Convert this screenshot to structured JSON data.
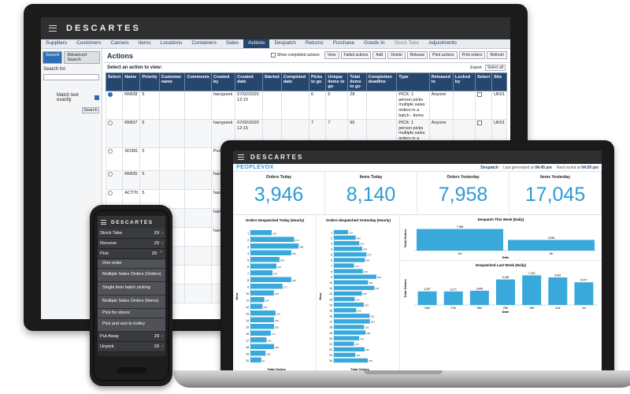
{
  "monitor": {
    "logo": "DESCARTES",
    "nav": [
      "Suppliers",
      "Customers",
      "Carriers",
      "Items",
      "Locations",
      "Containers",
      "Sales",
      "Actions",
      "Despatch",
      "Returns",
      "Purchase",
      "Goods In",
      "Stock Take",
      "Adjustments"
    ],
    "nav_active": "Actions",
    "sidebar": {
      "tab_search": "Search",
      "tab_advanced": "Advanced Search",
      "search_for": "Search for:",
      "match_text": "Match text exactly",
      "search_btn": "Search"
    },
    "title": "Actions",
    "show_completed": "Show completed actions",
    "toolbar": [
      "View",
      "Failed actions",
      "Add",
      "Delete",
      "Release",
      "Print actions",
      "Print orders",
      "Refresh"
    ],
    "select_label": "Select an action to view:",
    "export": "Export",
    "select_all": "Select all",
    "columns": [
      "Select",
      "Name",
      "Priority",
      "Customer name",
      "Comments",
      "Created by",
      "Created date",
      "Started",
      "Completed date",
      "Picks to go",
      "Unique items to go",
      "Total items to go",
      "Completion deadline",
      "Type",
      "Released to",
      "Locked by",
      "Select",
      "Site"
    ],
    "rows": [
      {
        "selected": true,
        "name": "RMI38",
        "priority": "5",
        "created_by": "harrypeek",
        "created_date": "07/02/2020 12:15",
        "picks": "6",
        "unique": "6",
        "total": "28",
        "type": "PICK: 1 person picks multiple sales orders in a batch - Items",
        "released": "Anyone",
        "locked": "",
        "site": "UK01"
      },
      {
        "selected": false,
        "name": "RMI37",
        "priority": "5",
        "created_by": "harrypeek",
        "created_date": "07/02/2020 12:15",
        "picks": "7",
        "unique": "7",
        "total": "95",
        "type": "PICK: 1 person picks multiple sales orders in a batch - Items",
        "released": "Anyone",
        "locked": "",
        "site": "UK01"
      },
      {
        "selected": false,
        "name": "SO381",
        "priority": "5",
        "created_by": "PvxAdmin",
        "created_date": "05/02/2020 11:01",
        "picks": "1",
        "unique": "1",
        "total": "1",
        "type": "PICK: 1 person picks 1 sales order at a time",
        "released": "Anyone",
        "locked": "mt (mt) (Unlock)",
        "site": "UK01"
      },
      {
        "selected": false,
        "name": "RMI35",
        "priority": "5",
        "created_by": "harrypeek",
        "created_date": "03/02/2020",
        "picks": "",
        "unique": "",
        "total": "",
        "type": "PICK: 1 person picks",
        "released": "",
        "locked": "",
        "site": "UK01"
      },
      {
        "selected": false,
        "name": "ACT70",
        "priority": "5",
        "created_by": "harry",
        "created_date": "",
        "picks": "",
        "unique": "",
        "total": "",
        "type": "",
        "released": "",
        "locked": "",
        "site": ""
      },
      {
        "selected": false,
        "name": "ACT69",
        "priority": "5",
        "created_by": "harry",
        "created_date": "",
        "picks": "",
        "unique": "",
        "total": "",
        "type": "",
        "released": "",
        "locked": "",
        "site": ""
      },
      {
        "selected": false,
        "name": "ACT68",
        "priority": "5",
        "created_by": "harry",
        "created_date": "",
        "picks": "",
        "unique": "",
        "total": "",
        "type": "",
        "released": "",
        "locked": "",
        "site": ""
      },
      {
        "selected": false,
        "name": "",
        "priority": "",
        "created_by": "",
        "created_date": "",
        "picks": "",
        "unique": "",
        "total": "",
        "type": "",
        "released": "",
        "locked": "",
        "site": ""
      },
      {
        "selected": false,
        "name": "",
        "priority": "",
        "created_by": "",
        "created_date": "",
        "picks": "",
        "unique": "",
        "total": "",
        "type": "",
        "released": "",
        "locked": "",
        "site": ""
      },
      {
        "selected": false,
        "name": "",
        "priority": "",
        "created_by": "",
        "created_date": "",
        "picks": "",
        "unique": "",
        "total": "",
        "type": "",
        "released": "",
        "locked": "",
        "site": ""
      }
    ],
    "extra_date": "03/02/2020"
  },
  "laptop": {
    "logo": "DESCARTES",
    "brand": "PEOPLEVOX",
    "despatch": "Despatch",
    "last_generated": "Last generated at",
    "last_time": "04:45 pm",
    "next_round": "Next round at",
    "next_time": "04:50 pm",
    "kpis": [
      {
        "label": "Orders Today",
        "value": "3,946"
      },
      {
        "label": "Items Today",
        "value": "8,140"
      },
      {
        "label": "Orders Yesterday",
        "value": "7,958"
      },
      {
        "label": "Items Yesterday",
        "value": "17,045"
      }
    ]
  },
  "chart_data": [
    {
      "type": "bar",
      "title": "Orders Despatched Today (Hourly)",
      "xlabel": "Total Orders",
      "ylabel": "Hour",
      "orientation": "horizontal",
      "categories": [
        "1",
        "2",
        "3",
        "4",
        "5",
        "6",
        "7",
        "8",
        "9",
        "10",
        "11",
        "12",
        "13",
        "14",
        "15",
        "16",
        "17",
        "18",
        "19",
        "20"
      ],
      "values": [
        180,
        370,
        408,
        346,
        246,
        220,
        187,
        346,
        272,
        198,
        118,
        102,
        212,
        200,
        200,
        172,
        136,
        200,
        128,
        92
      ]
    },
    {
      "type": "bar",
      "title": "Orders despatched Yesterday (Hourly)",
      "xlabel": "Total Orders",
      "ylabel": "Hour",
      "orientation": "horizontal",
      "categories": [
        "1",
        "2",
        "3",
        "4",
        "5",
        "6",
        "7",
        "8",
        "9",
        "10",
        "11",
        "12",
        "13",
        "14",
        "15",
        "16",
        "17",
        "18",
        "19",
        "20",
        "21",
        "22",
        "23",
        "24"
      ],
      "values": [
        120,
        185,
        215,
        240,
        276,
        262,
        170,
        245,
        360,
        289,
        342,
        238,
        176,
        253,
        190,
        302,
        305,
        255,
        268,
        214,
        170,
        260,
        181,
        287
      ]
    },
    {
      "type": "bar",
      "title": "Despatch This Week (Daily)",
      "xlabel": "Date",
      "ylabel": "Total Orders",
      "categories": [
        "3rd",
        "4th"
      ],
      "values": [
        7958,
        3946
      ],
      "data_labels": [
        "7,958",
        "3,946"
      ]
    },
    {
      "type": "bar",
      "title": "Despatched Last Week (Daily)",
      "xlabel": "Date",
      "ylabel": "Total Orders",
      "categories": [
        "26th",
        "27th",
        "28th",
        "29th",
        "30th",
        "31st",
        "1st"
      ],
      "values": [
        3287,
        3271,
        3448,
        6168,
        7153,
        6661,
        5477
      ],
      "data_labels": [
        "3,287",
        "3,271",
        "3,448",
        "6,168",
        "7,153",
        "6,661",
        "5,477"
      ]
    }
  ],
  "phone": {
    "logo": "DESCARTES",
    "menu": [
      {
        "label": "Stock Take",
        "count": "29"
      },
      {
        "label": "Receive",
        "count": "29"
      },
      {
        "label": "Pick",
        "count": "29"
      }
    ],
    "submenu": [
      "One order",
      "Multiple Sales Orders (Orders)",
      "Single item batch picking",
      "Multiple Sales Orders (Items)",
      "Pick for stores",
      "Pick and sort to trolley"
    ],
    "bottom": [
      {
        "label": "Put Away",
        "count": "29"
      },
      {
        "label": "Unpick",
        "count": "29"
      }
    ]
  },
  "colors": {
    "navy": "#26466e",
    "blue": "#2d9bd6",
    "bar": "#39a9dc",
    "dark": "#2e2f31"
  }
}
